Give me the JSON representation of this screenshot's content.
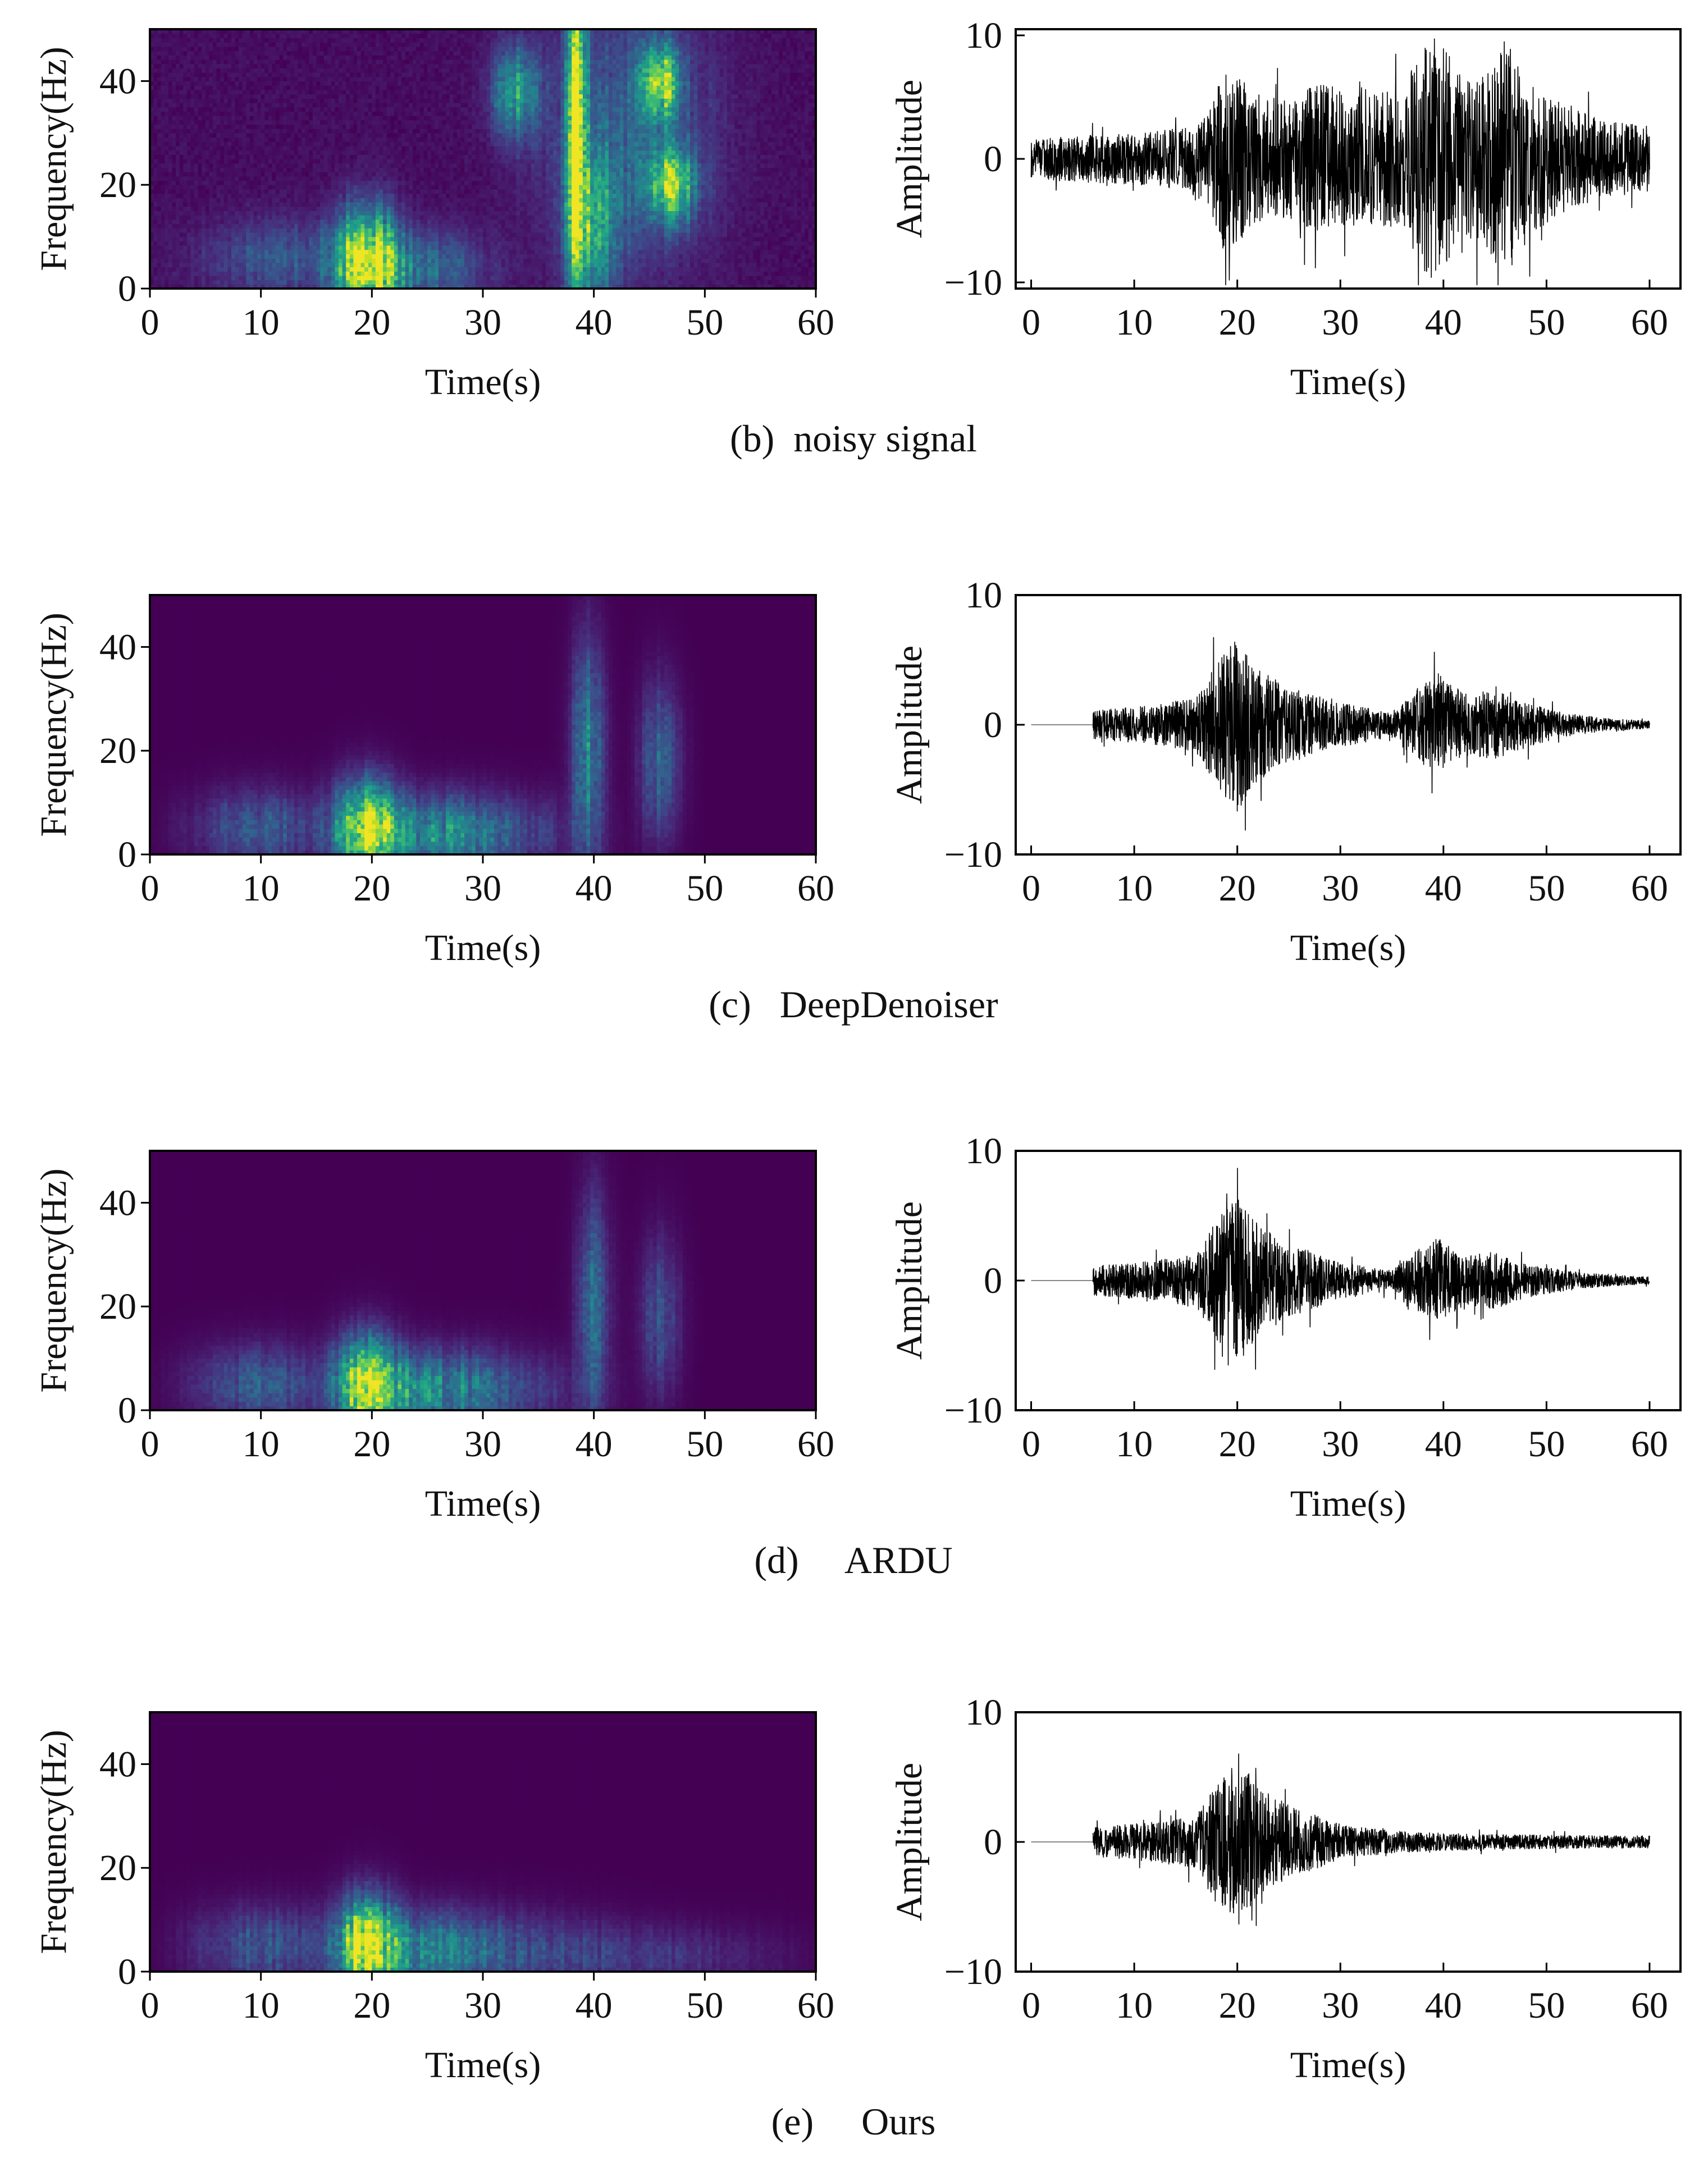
{
  "chart_data": [
    {
      "id": "b",
      "caption": "(b)  noisy signal",
      "charts": [
        {
          "type": "heatmap",
          "xlabel": "Time(s)",
          "ylabel": "Frequency(Hz)",
          "xlim": [
            0,
            60
          ],
          "ylim": [
            0,
            50
          ],
          "xticks": [
            0,
            10,
            20,
            30,
            40,
            50,
            60
          ],
          "yticks": [
            0,
            20,
            40
          ],
          "colormap": "viridis",
          "energy_sources": [
            {
              "t": 19.5,
              "f": 5,
              "st": 1.8,
              "sf": 7,
              "a": 1.0
            },
            {
              "t": 24,
              "f": 4,
              "st": 4,
              "sf": 5,
              "a": 0.3
            },
            {
              "t": 12,
              "f": 6,
              "st": 5,
              "sf": 5,
              "a": 0.22
            },
            {
              "t": 38.5,
              "f": 32,
              "st": 0.6,
              "sf": 22,
              "a": 0.95
            },
            {
              "t": 40,
              "f": 12,
              "st": 1.5,
              "sf": 10,
              "a": 0.5
            },
            {
              "t": 46,
              "f": 40,
              "st": 1.2,
              "sf": 5,
              "a": 0.75
            },
            {
              "t": 47,
              "f": 20,
              "st": 1.5,
              "sf": 5,
              "a": 0.7
            },
            {
              "t": 33,
              "f": 38,
              "st": 1.5,
              "sf": 6,
              "a": 0.45
            },
            {
              "t": 43,
              "f": 30,
              "st": 5,
              "sf": 18,
              "a": 0.25
            }
          ]
        },
        {
          "type": "line",
          "xlabel": "Time(s)",
          "ylabel": "Amplitude",
          "xlim": [
            -1.5,
            63
          ],
          "ylim": [
            -10.5,
            10.5
          ],
          "xticks": [
            0,
            10,
            20,
            30,
            40,
            50,
            60
          ],
          "yticks": [
            -10,
            0,
            10
          ],
          "color": "#000000",
          "t_start": 0,
          "t_end": 60,
          "noise_level": 0.55,
          "envelope": [
            {
              "t": 0,
              "a": 1.5
            },
            {
              "t": 5,
              "a": 1.8
            },
            {
              "t": 10,
              "a": 2.0
            },
            {
              "t": 15,
              "a": 2.4
            },
            {
              "t": 17,
              "a": 3.5
            },
            {
              "t": 18.5,
              "a": 7
            },
            {
              "t": 20,
              "a": 6.5
            },
            {
              "t": 22,
              "a": 5
            },
            {
              "t": 25,
              "a": 4.5
            },
            {
              "t": 28,
              "a": 6
            },
            {
              "t": 32,
              "a": 5
            },
            {
              "t": 36,
              "a": 5.5
            },
            {
              "t": 38,
              "a": 9
            },
            {
              "t": 39.5,
              "a": 9.5
            },
            {
              "t": 42,
              "a": 6
            },
            {
              "t": 44,
              "a": 6.5
            },
            {
              "t": 46,
              "a": 9.5
            },
            {
              "t": 48,
              "a": 6
            },
            {
              "t": 52,
              "a": 4
            },
            {
              "t": 56,
              "a": 3
            },
            {
              "t": 60,
              "a": 2.5
            }
          ]
        }
      ]
    },
    {
      "id": "c",
      "caption": "(c)   DeepDenoiser",
      "charts": [
        {
          "type": "heatmap",
          "xlabel": "Time(s)",
          "ylabel": "Frequency(Hz)",
          "xlim": [
            0,
            60
          ],
          "ylim": [
            0,
            50
          ],
          "xticks": [
            0,
            10,
            20,
            30,
            40,
            50,
            60
          ],
          "yticks": [
            0,
            20,
            40
          ],
          "colormap": "viridis",
          "energy_sources": [
            {
              "t": 19.5,
              "f": 5,
              "st": 1.8,
              "sf": 6,
              "a": 1.0
            },
            {
              "t": 25,
              "f": 4,
              "st": 3.5,
              "sf": 5,
              "a": 0.35
            },
            {
              "t": 10,
              "f": 5,
              "st": 4,
              "sf": 5,
              "a": 0.25
            },
            {
              "t": 31,
              "f": 4,
              "st": 5,
              "sf": 5,
              "a": 0.2
            },
            {
              "t": 39.5,
              "f": 20,
              "st": 1,
              "sf": 14,
              "a": 0.4
            },
            {
              "t": 46,
              "f": 18,
              "st": 1.2,
              "sf": 10,
              "a": 0.3
            }
          ]
        },
        {
          "type": "line",
          "xlabel": "Time(s)",
          "ylabel": "Amplitude",
          "xlim": [
            -1.5,
            63
          ],
          "ylim": [
            -10,
            10
          ],
          "xticks": [
            0,
            10,
            20,
            30,
            40,
            50,
            60
          ],
          "yticks": [
            -10,
            0,
            10
          ],
          "color": "#000000",
          "t_start": 6,
          "t_end": 60,
          "noise_level": 0.45,
          "envelope": [
            {
              "t": 6,
              "a": 1.2
            },
            {
              "t": 12,
              "a": 1.6
            },
            {
              "t": 16,
              "a": 2.2
            },
            {
              "t": 18,
              "a": 5
            },
            {
              "t": 20,
              "a": 7
            },
            {
              "t": 22,
              "a": 4.5
            },
            {
              "t": 25,
              "a": 3
            },
            {
              "t": 30,
              "a": 1.8
            },
            {
              "t": 35,
              "a": 1
            },
            {
              "t": 37.5,
              "a": 3
            },
            {
              "t": 39.5,
              "a": 4.2
            },
            {
              "t": 42,
              "a": 2.5
            },
            {
              "t": 45,
              "a": 2.8
            },
            {
              "t": 48,
              "a": 1.8
            },
            {
              "t": 52,
              "a": 0.9
            },
            {
              "t": 56,
              "a": 0.5
            },
            {
              "t": 60,
              "a": 0.3
            }
          ]
        }
      ]
    },
    {
      "id": "d",
      "caption": "(d)     ARDU",
      "charts": [
        {
          "type": "heatmap",
          "xlabel": "Time(s)",
          "ylabel": "Frequency(Hz)",
          "xlim": [
            0,
            60
          ],
          "ylim": [
            0,
            50
          ],
          "xticks": [
            0,
            10,
            20,
            30,
            40,
            50,
            60
          ],
          "yticks": [
            0,
            20,
            40
          ],
          "colormap": "viridis",
          "energy_sources": [
            {
              "t": 19.5,
              "f": 5,
              "st": 1.8,
              "sf": 6,
              "a": 1.0
            },
            {
              "t": 25,
              "f": 4,
              "st": 3.5,
              "sf": 5,
              "a": 0.35
            },
            {
              "t": 10,
              "f": 5,
              "st": 4,
              "sf": 5,
              "a": 0.25
            },
            {
              "t": 31,
              "f": 4,
              "st": 5,
              "sf": 5,
              "a": 0.2
            },
            {
              "t": 40,
              "f": 20,
              "st": 1,
              "sf": 14,
              "a": 0.3
            },
            {
              "t": 46,
              "f": 18,
              "st": 1.2,
              "sf": 10,
              "a": 0.22
            }
          ]
        },
        {
          "type": "line",
          "xlabel": "Time(s)",
          "ylabel": "Amplitude",
          "xlim": [
            -1.5,
            63
          ],
          "ylim": [
            -10,
            10
          ],
          "xticks": [
            0,
            10,
            20,
            30,
            40,
            50,
            60
          ],
          "yticks": [
            -10,
            0,
            10
          ],
          "color": "#000000",
          "t_start": 6,
          "t_end": 60,
          "noise_level": 0.45,
          "envelope": [
            {
              "t": 6,
              "a": 1.2
            },
            {
              "t": 12,
              "a": 1.6
            },
            {
              "t": 16,
              "a": 2.2
            },
            {
              "t": 18,
              "a": 5
            },
            {
              "t": 20,
              "a": 7
            },
            {
              "t": 22,
              "a": 4.5
            },
            {
              "t": 25,
              "a": 3
            },
            {
              "t": 30,
              "a": 1.5
            },
            {
              "t": 35,
              "a": 0.8
            },
            {
              "t": 37.5,
              "a": 2.5
            },
            {
              "t": 39.5,
              "a": 3.5
            },
            {
              "t": 42,
              "a": 2
            },
            {
              "t": 45,
              "a": 2.3
            },
            {
              "t": 48,
              "a": 1.4
            },
            {
              "t": 52,
              "a": 0.8
            },
            {
              "t": 56,
              "a": 0.45
            },
            {
              "t": 60,
              "a": 0.3
            }
          ]
        }
      ]
    },
    {
      "id": "e",
      "caption": "(e)     Ours",
      "charts": [
        {
          "type": "heatmap",
          "xlabel": "Time(s)",
          "ylabel": "Frequency(Hz)",
          "xlim": [
            0,
            60
          ],
          "ylim": [
            0,
            50
          ],
          "xticks": [
            0,
            10,
            20,
            30,
            40,
            50,
            60
          ],
          "yticks": [
            0,
            20,
            40
          ],
          "colormap": "viridis",
          "energy_sources": [
            {
              "t": 19.5,
              "f": 5,
              "st": 1.8,
              "sf": 6,
              "a": 1.0
            },
            {
              "t": 25,
              "f": 4,
              "st": 3.5,
              "sf": 5,
              "a": 0.35
            },
            {
              "t": 10,
              "f": 5,
              "st": 4,
              "sf": 5,
              "a": 0.25
            },
            {
              "t": 32,
              "f": 4,
              "st": 6,
              "sf": 5,
              "a": 0.18
            },
            {
              "t": 45,
              "f": 3,
              "st": 8,
              "sf": 4,
              "a": 0.12
            }
          ]
        },
        {
          "type": "line",
          "xlabel": "Time(s)",
          "ylabel": "Amplitude",
          "xlim": [
            -1.5,
            63
          ],
          "ylim": [
            -10,
            10
          ],
          "xticks": [
            0,
            10,
            20,
            30,
            40,
            50,
            60
          ],
          "yticks": [
            -10,
            0,
            10
          ],
          "color": "#000000",
          "t_start": 6,
          "t_end": 60,
          "noise_level": 0.45,
          "envelope": [
            {
              "t": 6,
              "a": 1.2
            },
            {
              "t": 12,
              "a": 1.6
            },
            {
              "t": 16,
              "a": 2.2
            },
            {
              "t": 18,
              "a": 5
            },
            {
              "t": 20,
              "a": 7
            },
            {
              "t": 22,
              "a": 4.5
            },
            {
              "t": 25,
              "a": 3
            },
            {
              "t": 30,
              "a": 1.4
            },
            {
              "t": 35,
              "a": 0.9
            },
            {
              "t": 40,
              "a": 0.7
            },
            {
              "t": 45,
              "a": 0.6
            },
            {
              "t": 50,
              "a": 0.55
            },
            {
              "t": 55,
              "a": 0.5
            },
            {
              "t": 60,
              "a": 0.5
            }
          ]
        }
      ]
    }
  ]
}
